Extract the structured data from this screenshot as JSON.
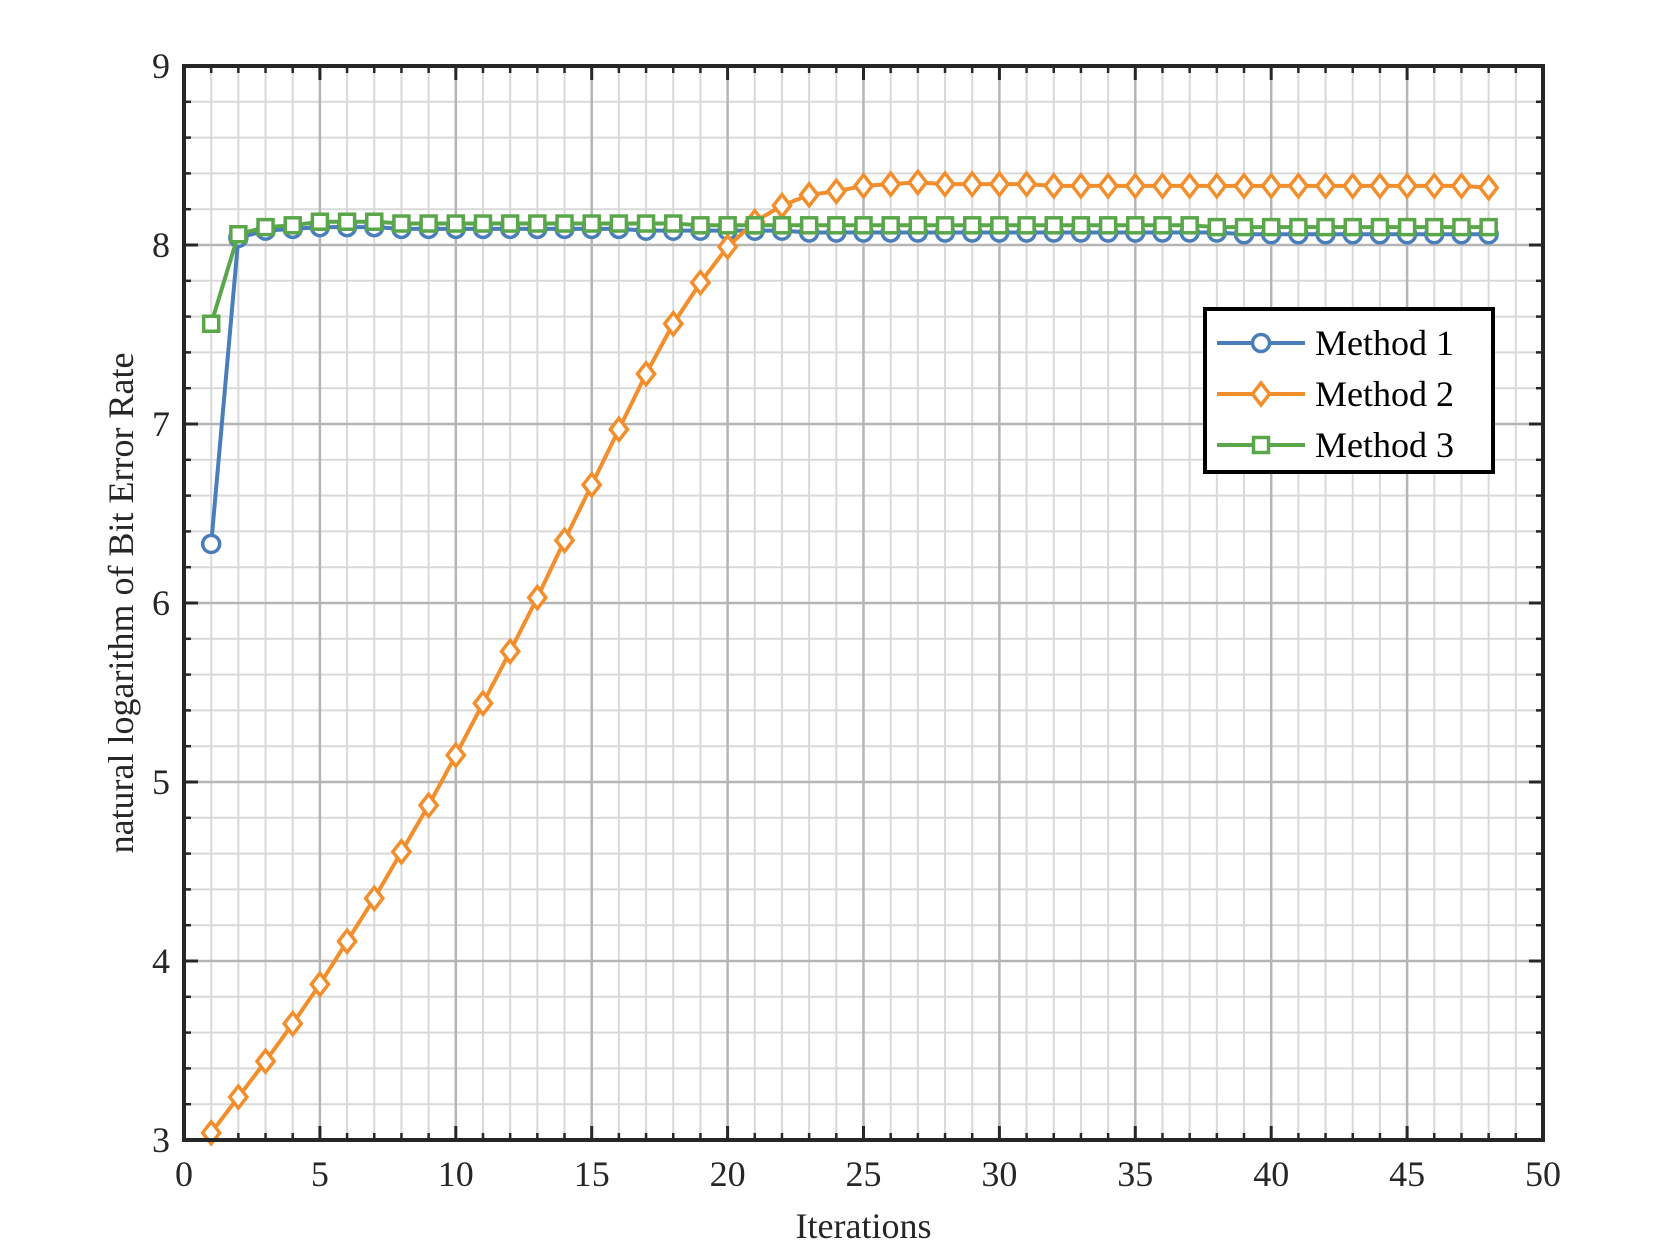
{
  "chart_data": {
    "type": "line",
    "title": "",
    "xlabel": "Iterations",
    "ylabel": "natural logarithm of Bit Error Rate",
    "xlim": [
      0,
      50
    ],
    "ylim": [
      3,
      9
    ],
    "xticks": [
      0,
      5,
      10,
      15,
      20,
      25,
      30,
      35,
      40,
      45,
      50
    ],
    "yticks": [
      3,
      4,
      5,
      6,
      7,
      8,
      9
    ],
    "xtick_labels": [
      "0",
      "5",
      "10",
      "15",
      "20",
      "25",
      "30",
      "35",
      "40",
      "45",
      "50"
    ],
    "ytick_labels": [
      "3",
      "4",
      "5",
      "6",
      "7",
      "8",
      "9"
    ],
    "grid": true,
    "minor_grid": true,
    "legend": "right",
    "x": [
      1,
      2,
      3,
      4,
      5,
      6,
      7,
      8,
      9,
      10,
      11,
      12,
      13,
      14,
      15,
      16,
      17,
      18,
      19,
      20,
      21,
      22,
      23,
      24,
      25,
      26,
      27,
      28,
      29,
      30,
      31,
      32,
      33,
      34,
      35,
      36,
      37,
      38,
      39,
      40,
      41,
      42,
      43,
      44,
      45,
      46,
      47,
      48
    ],
    "series": [
      {
        "name": "Method 1",
        "color": "#4a7ebb",
        "marker": "circle",
        "values": [
          6.33,
          8.04,
          8.08,
          8.09,
          8.1,
          8.1,
          8.1,
          8.09,
          8.09,
          8.09,
          8.09,
          8.09,
          8.09,
          8.09,
          8.09,
          8.09,
          8.08,
          8.08,
          8.08,
          8.08,
          8.08,
          8.08,
          8.07,
          8.07,
          8.07,
          8.07,
          8.07,
          8.07,
          8.07,
          8.07,
          8.07,
          8.07,
          8.07,
          8.07,
          8.07,
          8.07,
          8.07,
          8.07,
          8.06,
          8.06,
          8.06,
          8.06,
          8.06,
          8.06,
          8.06,
          8.06,
          8.06,
          8.06
        ]
      },
      {
        "name": "Method 2",
        "color": "#f28e2b",
        "marker": "diamond",
        "values": [
          3.04,
          3.24,
          3.44,
          3.65,
          3.87,
          4.11,
          4.35,
          4.61,
          4.87,
          5.15,
          5.44,
          5.73,
          6.03,
          6.35,
          6.66,
          6.97,
          7.28,
          7.56,
          7.79,
          7.99,
          8.13,
          8.22,
          8.28,
          8.3,
          8.33,
          8.34,
          8.35,
          8.34,
          8.34,
          8.34,
          8.34,
          8.33,
          8.33,
          8.33,
          8.33,
          8.33,
          8.33,
          8.33,
          8.33,
          8.33,
          8.33,
          8.33,
          8.33,
          8.33,
          8.33,
          8.33,
          8.33,
          8.32
        ]
      },
      {
        "name": "Method 3",
        "color": "#5aa64a",
        "marker": "square",
        "values": [
          7.56,
          8.06,
          8.1,
          8.11,
          8.13,
          8.13,
          8.13,
          8.12,
          8.12,
          8.12,
          8.12,
          8.12,
          8.12,
          8.12,
          8.12,
          8.12,
          8.12,
          8.12,
          8.11,
          8.11,
          8.11,
          8.11,
          8.11,
          8.11,
          8.11,
          8.11,
          8.11,
          8.11,
          8.11,
          8.11,
          8.11,
          8.11,
          8.11,
          8.11,
          8.11,
          8.11,
          8.11,
          8.1,
          8.1,
          8.1,
          8.1,
          8.1,
          8.1,
          8.1,
          8.1,
          8.1,
          8.1,
          8.1
        ]
      }
    ]
  }
}
